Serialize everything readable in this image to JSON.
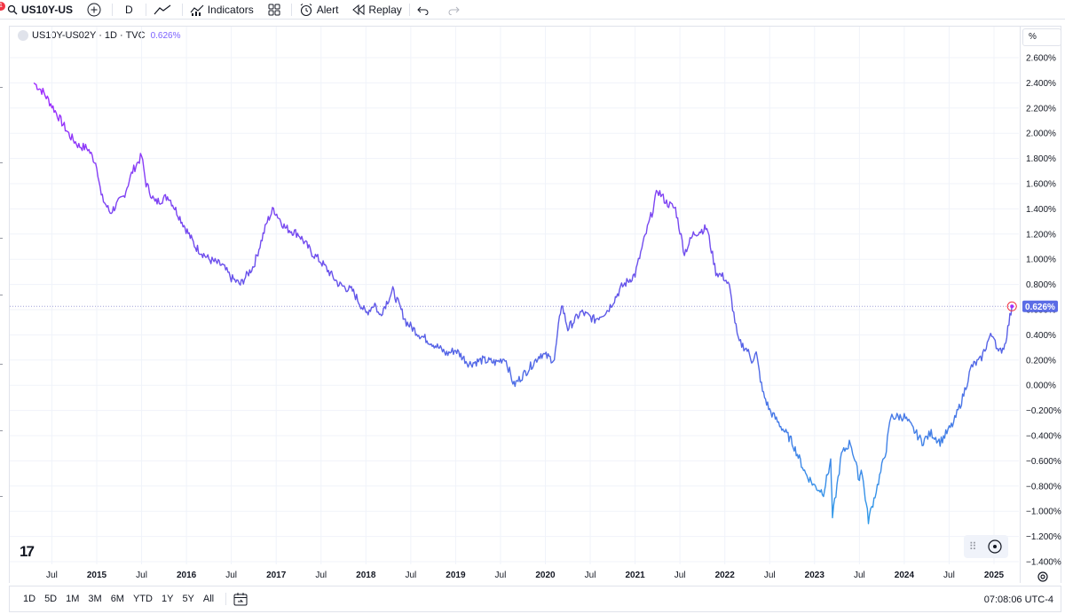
{
  "toolbar": {
    "symbol": "US10Y-US",
    "interval": "D",
    "indicators_label": "Indicators",
    "alert_label": "Alert",
    "replay_label": "Replay",
    "notification_count": "1"
  },
  "legend": {
    "symbol_info": "US10Y-US02Y · 1D · TVC",
    "last_value": "0.626%"
  },
  "price_scale": {
    "mode_label": "%",
    "current_label": "0.626%"
  },
  "bottom": {
    "ranges": [
      "1D",
      "5D",
      "1M",
      "3M",
      "6M",
      "YTD",
      "1Y",
      "5Y",
      "All"
    ],
    "clock": "07:08:06 UTC-4"
  },
  "chart_data": {
    "type": "line",
    "title": "US10Y-US02Y · 1D · TVC",
    "xlabel": "",
    "ylabel": "",
    "ylim": [
      -1.4,
      2.6
    ],
    "xlim": [
      2014.3,
      2025.25
    ],
    "y_ticks": [
      2.6,
      2.4,
      2.2,
      2.0,
      1.8,
      1.6,
      1.4,
      1.2,
      1.0,
      0.8,
      0.6,
      0.4,
      0.2,
      0.0,
      -0.2,
      -0.4,
      -0.6,
      -0.8,
      -1.0,
      -1.2,
      -1.4
    ],
    "y_tick_labels": [
      "2.600%",
      "2.400%",
      "2.200%",
      "2.000%",
      "1.800%",
      "1.600%",
      "1.400%",
      "1.200%",
      "1.000%",
      "0.800%",
      "0.600%",
      "0.400%",
      "0.200%",
      "0.000%",
      "−0.200%",
      "−0.400%",
      "−0.600%",
      "−0.800%",
      "−1.000%",
      "−1.200%",
      "−1.400%"
    ],
    "x_ticks": [
      {
        "t": 2014.5,
        "label": "Jul"
      },
      {
        "t": 2015.0,
        "label": "2015"
      },
      {
        "t": 2015.5,
        "label": "Jul"
      },
      {
        "t": 2016.0,
        "label": "2016"
      },
      {
        "t": 2016.5,
        "label": "Jul"
      },
      {
        "t": 2017.0,
        "label": "2017"
      },
      {
        "t": 2017.5,
        "label": "Jul"
      },
      {
        "t": 2018.0,
        "label": "2018"
      },
      {
        "t": 2018.5,
        "label": "Jul"
      },
      {
        "t": 2019.0,
        "label": "2019"
      },
      {
        "t": 2019.5,
        "label": "Jul"
      },
      {
        "t": 2020.0,
        "label": "2020"
      },
      {
        "t": 2020.5,
        "label": "Jul"
      },
      {
        "t": 2021.0,
        "label": "2021"
      },
      {
        "t": 2021.5,
        "label": "Jul"
      },
      {
        "t": 2022.0,
        "label": "2022"
      },
      {
        "t": 2022.5,
        "label": "Jul"
      },
      {
        "t": 2023.0,
        "label": "2023"
      },
      {
        "t": 2023.5,
        "label": "Jul"
      },
      {
        "t": 2024.0,
        "label": "2024"
      },
      {
        "t": 2024.5,
        "label": "Jul"
      },
      {
        "t": 2025.0,
        "label": "2025"
      }
    ],
    "series": [
      {
        "color_start": "#a12bff",
        "color_mid": "#5b5ce6",
        "color_end": "#2f9be8",
        "x": [
          2014.3,
          2014.4,
          2014.5,
          2014.6,
          2014.7,
          2014.8,
          2014.9,
          2015.0,
          2015.05,
          2015.15,
          2015.3,
          2015.4,
          2015.5,
          2015.55,
          2015.65,
          2015.8,
          2015.95,
          2016.1,
          2016.25,
          2016.4,
          2016.5,
          2016.6,
          2016.75,
          2016.9,
          2016.97,
          2017.1,
          2017.25,
          2017.4,
          2017.5,
          2017.7,
          2017.85,
          2018.0,
          2018.1,
          2018.15,
          2018.3,
          2018.45,
          2018.6,
          2018.75,
          2018.9,
          2019.0,
          2019.15,
          2019.3,
          2019.45,
          2019.55,
          2019.65,
          2019.8,
          2019.95,
          2020.1,
          2020.18,
          2020.25,
          2020.4,
          2020.55,
          2020.7,
          2020.85,
          2021.0,
          2021.1,
          2021.2,
          2021.25,
          2021.35,
          2021.45,
          2021.55,
          2021.65,
          2021.8,
          2021.9,
          2022.0,
          2022.05,
          2022.15,
          2022.25,
          2022.3,
          2022.35,
          2022.42,
          2022.5,
          2022.6,
          2022.75,
          2022.9,
          2023.0,
          2023.1,
          2023.18,
          2023.2,
          2023.3,
          2023.4,
          2023.5,
          2023.52,
          2023.6,
          2023.7,
          2023.8,
          2023.85,
          2024.0,
          2024.1,
          2024.2,
          2024.3,
          2024.4,
          2024.5,
          2024.55,
          2024.65,
          2024.75,
          2024.85,
          2024.95,
          2025.0,
          2025.05,
          2025.12,
          2025.2
        ],
        "y": [
          2.4,
          2.33,
          2.22,
          2.1,
          1.98,
          1.9,
          1.88,
          1.75,
          1.5,
          1.37,
          1.5,
          1.7,
          1.82,
          1.6,
          1.45,
          1.5,
          1.3,
          1.1,
          1.0,
          0.95,
          0.85,
          0.8,
          0.95,
          1.3,
          1.4,
          1.25,
          1.2,
          1.05,
          0.98,
          0.8,
          0.75,
          0.57,
          0.65,
          0.55,
          0.75,
          0.5,
          0.4,
          0.33,
          0.25,
          0.28,
          0.17,
          0.2,
          0.18,
          0.22,
          0.0,
          0.12,
          0.25,
          0.2,
          0.65,
          0.45,
          0.58,
          0.52,
          0.6,
          0.78,
          0.88,
          1.15,
          1.4,
          1.55,
          1.45,
          1.4,
          1.05,
          1.2,
          1.25,
          0.9,
          0.85,
          0.78,
          0.35,
          0.28,
          0.2,
          0.25,
          -0.05,
          -0.2,
          -0.3,
          -0.45,
          -0.7,
          -0.8,
          -0.85,
          -0.6,
          -1.05,
          -0.55,
          -0.45,
          -0.75,
          -0.65,
          -1.07,
          -0.8,
          -0.5,
          -0.25,
          -0.25,
          -0.35,
          -0.45,
          -0.38,
          -0.45,
          -0.35,
          -0.3,
          -0.1,
          0.15,
          0.2,
          0.38,
          0.4,
          0.25,
          0.32,
          0.626
        ]
      }
    ]
  }
}
